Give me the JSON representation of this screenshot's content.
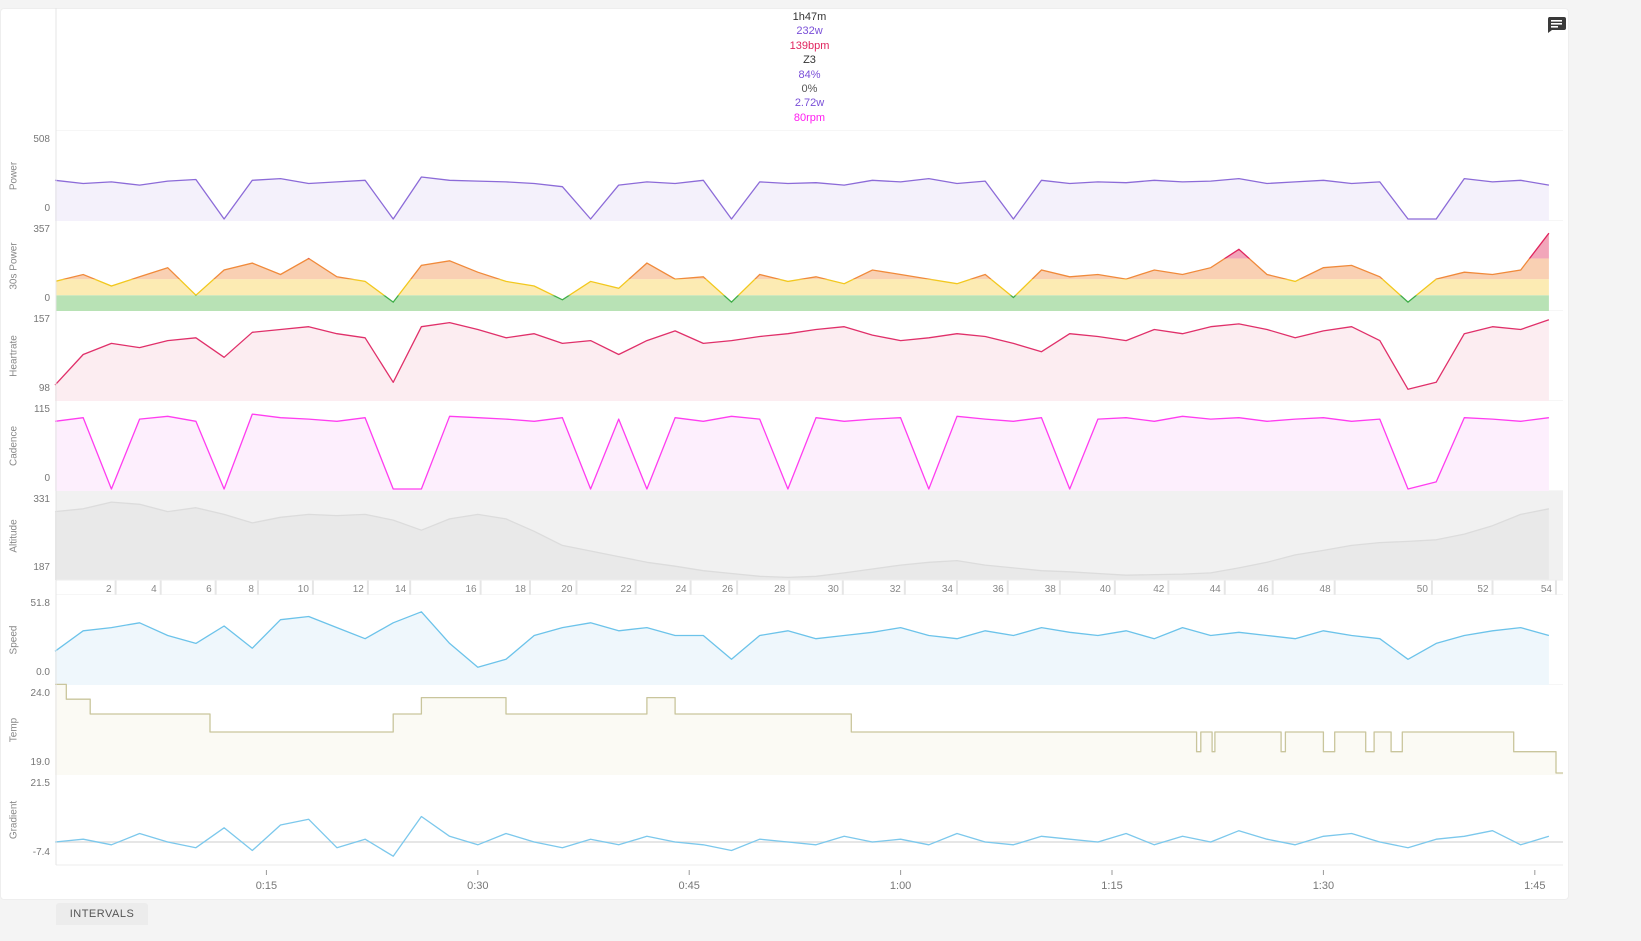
{
  "summary": {
    "items": [
      {
        "text": "1h47m",
        "color": "#333333"
      },
      {
        "text": "232w",
        "color": "#7a4fd8"
      },
      {
        "text": "139bpm",
        "color": "#e0245e"
      },
      {
        "text": "Z3",
        "color": "#333333"
      },
      {
        "text": "84%",
        "color": "#7a4fd8"
      },
      {
        "text": "0%",
        "color": "#555555"
      },
      {
        "text": "2.72w",
        "color": "#7a4fd8"
      },
      {
        "text": "80rpm",
        "color": "#ff1ef0"
      }
    ],
    "comment_icon": "chat-bubble-icon"
  },
  "tabs": {
    "intervals": "INTERVALS"
  },
  "chart_data": {
    "type": "line",
    "x_unit": "minutes",
    "x": [
      0,
      2,
      4,
      6,
      8,
      10,
      12,
      14,
      16,
      18,
      20,
      22,
      24,
      26,
      28,
      30,
      32,
      34,
      36,
      38,
      40,
      42,
      44,
      46,
      48,
      50,
      52,
      54,
      56,
      58,
      60,
      62,
      64,
      66,
      68,
      70,
      72,
      74,
      76,
      78,
      80,
      82,
      84,
      86,
      88,
      90,
      92,
      94,
      96,
      98,
      100,
      102,
      104,
      106
    ],
    "xlim": [
      0,
      107
    ],
    "time_ticks": [
      {
        "t": 15,
        "label": "0:15"
      },
      {
        "t": 30,
        "label": "0:30"
      },
      {
        "t": 45,
        "label": "0:45"
      },
      {
        "t": 60,
        "label": "1:00"
      },
      {
        "t": 75,
        "label": "1:15"
      },
      {
        "t": 90,
        "label": "1:30"
      },
      {
        "t": 105,
        "label": "1:45"
      }
    ],
    "panels": [
      {
        "key": "power",
        "title": "Power",
        "ymax_label": "508",
        "ymin_label": "0",
        "ylim": [
          0,
          508
        ],
        "color": "#8c6bd8",
        "fill": "#f4f1fb",
        "values": [
          240,
          220,
          230,
          210,
          235,
          245,
          0,
          240,
          250,
          220,
          230,
          240,
          0,
          260,
          240,
          235,
          230,
          220,
          200,
          0,
          210,
          230,
          220,
          240,
          0,
          230,
          220,
          225,
          210,
          240,
          230,
          250,
          220,
          235,
          0,
          240,
          220,
          230,
          225,
          240,
          230,
          235,
          250,
          220,
          230,
          240,
          220,
          230,
          0,
          0,
          250,
          230,
          240,
          210
        ]
      },
      {
        "key": "power30",
        "title": "30s Power",
        "ymax_label": "357",
        "ymin_label": "0",
        "ylim": [
          0,
          357
        ],
        "zoned": true,
        "zones": [
          {
            "upto": 60,
            "line": "#3fae49",
            "fill": "#b8e2b5"
          },
          {
            "upto": 130,
            "line": "#f2c81e",
            "fill": "#fcebb3"
          },
          {
            "upto": 220,
            "line": "#f08a3b",
            "fill": "#f9d0b3"
          },
          {
            "upto": 357,
            "line": "#e0245e",
            "fill": "#f2a6ba"
          }
        ],
        "values": [
          120,
          150,
          100,
          140,
          180,
          60,
          170,
          200,
          150,
          220,
          140,
          120,
          30,
          190,
          210,
          160,
          120,
          100,
          40,
          120,
          90,
          200,
          130,
          140,
          30,
          150,
          120,
          140,
          110,
          170,
          150,
          130,
          110,
          150,
          50,
          170,
          140,
          150,
          130,
          170,
          150,
          180,
          260,
          150,
          120,
          180,
          190,
          140,
          30,
          130,
          160,
          150,
          170,
          330
        ]
      },
      {
        "key": "heartrate",
        "title": "Heartrate",
        "ymax_label": "157",
        "ymin_label": "98",
        "ylim": [
          98,
          157
        ],
        "color": "#e0306a",
        "fill": "#fcedf1",
        "values": [
          108,
          130,
          138,
          135,
          140,
          142,
          128,
          146,
          148,
          150,
          145,
          142,
          110,
          150,
          153,
          148,
          142,
          145,
          138,
          140,
          130,
          140,
          147,
          138,
          140,
          143,
          145,
          148,
          150,
          144,
          140,
          142,
          145,
          143,
          138,
          132,
          145,
          143,
          140,
          148,
          145,
          150,
          152,
          148,
          142,
          147,
          150,
          140,
          105,
          110,
          145,
          150,
          148,
          155
        ]
      },
      {
        "key": "cadence",
        "title": "Cadence",
        "ymax_label": "115",
        "ymin_label": "0",
        "ylim": [
          0,
          115
        ],
        "color": "#ff3df0",
        "fill": "#fdeffd",
        "values": [
          95,
          100,
          0,
          98,
          102,
          95,
          0,
          105,
          100,
          98,
          95,
          100,
          0,
          0,
          102,
          100,
          98,
          95,
          100,
          0,
          98,
          0,
          100,
          95,
          102,
          98,
          0,
          100,
          95,
          98,
          100,
          0,
          102,
          98,
          95,
          100,
          0,
          98,
          100,
          95,
          102,
          98,
          100,
          95,
          98,
          100,
          95,
          98,
          0,
          10,
          100,
          98,
          95,
          100
        ]
      },
      {
        "key": "altitude",
        "title": "Altitude",
        "ymax_label": "331",
        "ymin_label": "187",
        "ylim": [
          187,
          331
        ],
        "color": "#dcdcdc",
        "fill": "#e9e9e9",
        "bg": "#f1f1f1",
        "values": [
          305,
          310,
          322,
          318,
          305,
          312,
          300,
          285,
          295,
          300,
          298,
          300,
          290,
          272,
          292,
          300,
          292,
          270,
          245,
          235,
          225,
          215,
          208,
          200,
          195,
          190,
          188,
          190,
          196,
          203,
          210,
          215,
          218,
          210,
          205,
          200,
          198,
          195,
          192,
          193,
          194,
          196,
          205,
          215,
          228,
          236,
          245,
          250,
          252,
          255,
          265,
          280,
          300,
          310
        ]
      },
      {
        "key": "laps"
      },
      {
        "key": "speed",
        "title": "Speed",
        "ymax_label": "51.8",
        "ymin_label": "0.0",
        "ylim": [
          0,
          51.8
        ],
        "color": "#6cc3ea",
        "fill": "#eff7fc",
        "values": [
          20,
          33,
          35,
          38,
          30,
          25,
          36,
          22,
          40,
          42,
          35,
          28,
          38,
          45,
          25,
          10,
          15,
          30,
          35,
          38,
          33,
          35,
          30,
          30,
          15,
          30,
          33,
          28,
          30,
          32,
          35,
          30,
          28,
          33,
          30,
          35,
          32,
          30,
          33,
          28,
          35,
          30,
          32,
          30,
          28,
          33,
          30,
          28,
          15,
          25,
          30,
          33,
          35,
          30
        ]
      },
      {
        "key": "temp",
        "title": "Temp",
        "ymax_label": "24.0",
        "ymin_label": "19.0",
        "ylim": [
          19,
          24
        ],
        "color": "#c9c59c",
        "fill": "#fbfaf4",
        "steps": [
          [
            0,
            24.4
          ],
          [
            0.8,
            23.5
          ],
          [
            2.5,
            22.6
          ],
          [
            11,
            21.5
          ],
          [
            24,
            22.6
          ],
          [
            26,
            23.6
          ],
          [
            32,
            22.6
          ],
          [
            42,
            23.6
          ],
          [
            44,
            22.6
          ],
          [
            56.5,
            21.5
          ],
          [
            81,
            20.3
          ],
          [
            81.3,
            21.5
          ],
          [
            82.1,
            20.3
          ],
          [
            82.3,
            21.5
          ],
          [
            87,
            20.3
          ],
          [
            87.3,
            21.5
          ],
          [
            90,
            20.3
          ],
          [
            90.8,
            21.5
          ],
          [
            93,
            20.3
          ],
          [
            93.6,
            21.5
          ],
          [
            94.8,
            20.3
          ],
          [
            95.6,
            21.5
          ],
          [
            103.5,
            20.3
          ],
          [
            106.5,
            19.0
          ],
          [
            107,
            19.0
          ]
        ]
      },
      {
        "key": "gradient",
        "title": "Gradient",
        "ymax_label": "21.5",
        "ymin_label": "-7.4",
        "ylim": [
          -7.4,
          21.5
        ],
        "color": "#7cc8ec",
        "zero_line": true,
        "values": [
          0,
          1,
          -1,
          3,
          0,
          -2,
          5,
          -3,
          6,
          8,
          -2,
          1,
          -5,
          9,
          2,
          -1,
          3,
          0,
          -2,
          1,
          -1,
          2,
          0,
          -1,
          -3,
          1,
          0,
          -1,
          2,
          0,
          1,
          -1,
          3,
          0,
          -1,
          2,
          1,
          0,
          3,
          -1,
          2,
          0,
          4,
          1,
          -1,
          2,
          3,
          0,
          -2,
          1,
          2,
          4,
          -1,
          2
        ]
      }
    ],
    "laps": [
      {
        "n": 2,
        "end": 4.3
      },
      {
        "n": 4,
        "end": 7.5
      },
      {
        "n": 6,
        "end": 11.4
      },
      {
        "n": 8,
        "end": 14.4
      },
      {
        "n": 10,
        "end": 18.3
      },
      {
        "n": 12,
        "end": 22.2
      },
      {
        "n": 14,
        "end": 25.2
      },
      {
        "n": 16,
        "end": 30.2
      },
      {
        "n": 18,
        "end": 33.7
      },
      {
        "n": 20,
        "end": 37.0
      },
      {
        "n": 22,
        "end": 41.2
      },
      {
        "n": 24,
        "end": 45.1
      },
      {
        "n": 26,
        "end": 48.4
      },
      {
        "n": 28,
        "end": 52.1
      },
      {
        "n": 30,
        "end": 55.9
      },
      {
        "n": 32,
        "end": 60.3
      },
      {
        "n": 34,
        "end": 64.0
      },
      {
        "n": 36,
        "end": 67.6
      },
      {
        "n": 38,
        "end": 71.3
      },
      {
        "n": 40,
        "end": 75.2
      },
      {
        "n": 42,
        "end": 79.0
      },
      {
        "n": 44,
        "end": 83.0
      },
      {
        "n": 46,
        "end": 86.4
      },
      {
        "n": 48,
        "end": 90.8
      },
      {
        "n": 50,
        "end": 97.7
      },
      {
        "n": 52,
        "end": 102.0
      },
      {
        "n": 54,
        "end": 106.5
      }
    ]
  }
}
